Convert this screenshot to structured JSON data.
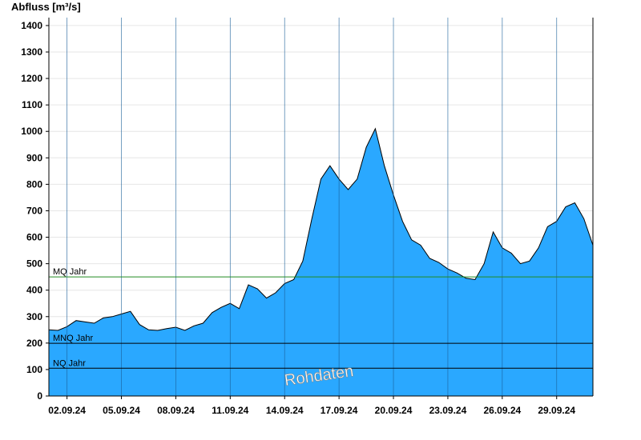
{
  "chart_data": {
    "type": "area",
    "ylabel": "Abfluss [m³/s]",
    "ylim": [
      0,
      1430
    ],
    "xlim": [
      "2024-09-01T00:00",
      "2024-10-01T00:00"
    ],
    "yticks": [
      0,
      100,
      200,
      300,
      400,
      500,
      600,
      700,
      800,
      900,
      1000,
      1100,
      1200,
      1300,
      1400
    ],
    "xticks": [
      {
        "date": "2024-09-02",
        "label": "02.09.24"
      },
      {
        "date": "2024-09-05",
        "label": "05.09.24"
      },
      {
        "date": "2024-09-08",
        "label": "08.09.24"
      },
      {
        "date": "2024-09-11",
        "label": "11.09.24"
      },
      {
        "date": "2024-09-14",
        "label": "14.09.24"
      },
      {
        "date": "2024-09-17",
        "label": "17.09.24"
      },
      {
        "date": "2024-09-20",
        "label": "20.09.24"
      },
      {
        "date": "2024-09-23",
        "label": "23.09.24"
      },
      {
        "date": "2024-09-26",
        "label": "26.09.24"
      },
      {
        "date": "2024-09-29",
        "label": "29.09.24"
      }
    ],
    "grid": true,
    "reference_lines": [
      {
        "label": "MQ Jahr",
        "value": 450,
        "color": "#228b22"
      },
      {
        "label": "MNQ Jahr",
        "value": 199,
        "color": "#000000"
      },
      {
        "label": "NQ Jahr",
        "value": 105,
        "color": "#000000"
      }
    ],
    "annotation": "Rohdaten",
    "fill_color": "#2aa8ff",
    "series": [
      {
        "x": [
          "2024-09-01T00:00",
          "2024-09-01T12:00",
          "2024-09-02T00:00",
          "2024-09-02T12:00",
          "2024-09-03T00:00",
          "2024-09-03T12:00",
          "2024-09-04T00:00",
          "2024-09-04T12:00",
          "2024-09-05T00:00",
          "2024-09-05T12:00",
          "2024-09-06T00:00",
          "2024-09-06T12:00",
          "2024-09-07T00:00",
          "2024-09-07T12:00",
          "2024-09-08T00:00",
          "2024-09-08T12:00",
          "2024-09-09T00:00",
          "2024-09-09T12:00",
          "2024-09-10T00:00",
          "2024-09-10T12:00",
          "2024-09-11T00:00",
          "2024-09-11T12:00",
          "2024-09-12T00:00",
          "2024-09-12T12:00",
          "2024-09-13T00:00",
          "2024-09-13T12:00",
          "2024-09-14T00:00",
          "2024-09-14T12:00",
          "2024-09-15T00:00",
          "2024-09-15T12:00",
          "2024-09-16T00:00",
          "2024-09-16T12:00",
          "2024-09-17T00:00",
          "2024-09-17T12:00",
          "2024-09-18T00:00",
          "2024-09-18T12:00",
          "2024-09-19T00:00",
          "2024-09-19T12:00",
          "2024-09-20T00:00",
          "2024-09-20T12:00",
          "2024-09-21T00:00",
          "2024-09-21T12:00",
          "2024-09-22T00:00",
          "2024-09-22T12:00",
          "2024-09-23T00:00",
          "2024-09-23T12:00",
          "2024-09-24T00:00",
          "2024-09-24T12:00",
          "2024-09-25T00:00",
          "2024-09-25T12:00",
          "2024-09-26T00:00",
          "2024-09-26T12:00",
          "2024-09-27T00:00",
          "2024-09-27T12:00",
          "2024-09-28T00:00",
          "2024-09-28T12:00",
          "2024-09-29T00:00",
          "2024-09-29T12:00",
          "2024-09-30T00:00",
          "2024-09-30T12:00",
          "2024-10-01T00:00"
        ],
        "values": [
          250,
          248,
          262,
          285,
          280,
          275,
          295,
          300,
          310,
          320,
          270,
          250,
          248,
          255,
          260,
          248,
          265,
          275,
          315,
          335,
          350,
          330,
          420,
          405,
          370,
          390,
          425,
          440,
          510,
          670,
          820,
          870,
          820,
          780,
          820,
          940,
          1010,
          870,
          760,
          660,
          590,
          570,
          520,
          505,
          480,
          465,
          445,
          440,
          500,
          620,
          560,
          540,
          500,
          510,
          560,
          640,
          660,
          715,
          730,
          670,
          570
        ]
      }
    ]
  }
}
